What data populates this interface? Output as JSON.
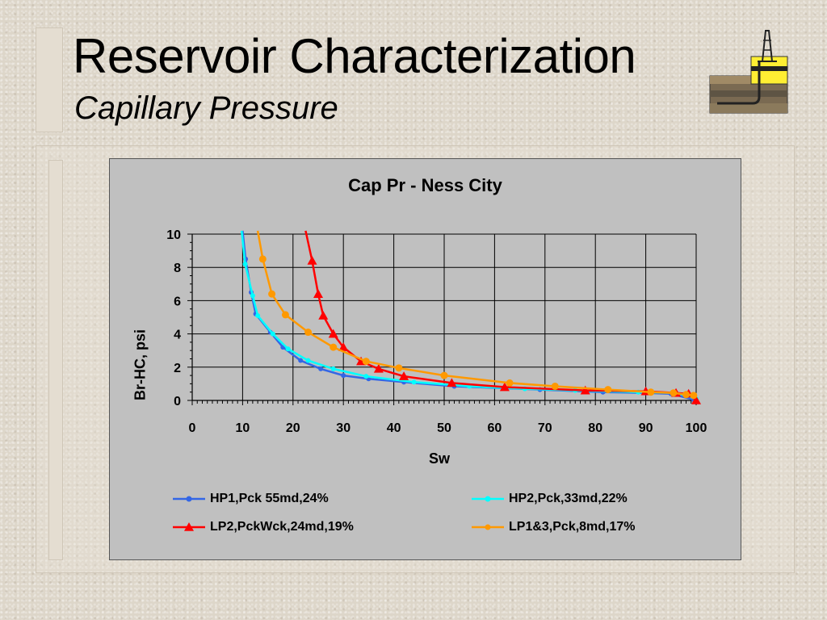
{
  "slide": {
    "title": "Reservoir Characterization",
    "subtitle": "Capillary Pressure",
    "logo_icon": "oil-derrick-logo-icon",
    "colors": {
      "background": "#ddd6c9",
      "plot_area": "#c0c0c0"
    }
  },
  "chart_data": {
    "type": "line",
    "title": "Cap Pr - Ness City",
    "xlabel": "Sw",
    "ylabel": "Br-HC, psi",
    "xlim": [
      0,
      100
    ],
    "ylim": [
      0,
      10
    ],
    "xticks": [
      0,
      10,
      20,
      30,
      40,
      50,
      60,
      70,
      80,
      90,
      100
    ],
    "yticks": [
      0,
      2,
      4,
      6,
      8,
      10
    ],
    "grid": true,
    "legend_position": "bottom",
    "series": [
      {
        "name": "HP1,Pck 55md,24%",
        "color": "#3366e6",
        "marker": "circle",
        "points": [
          [
            10,
            10.2
          ],
          [
            10.6,
            8.5
          ],
          [
            11.7,
            6.5
          ],
          [
            12.6,
            5.2
          ],
          [
            15.5,
            4.1
          ],
          [
            18,
            3.2
          ],
          [
            21.5,
            2.4
          ],
          [
            25.5,
            1.9
          ],
          [
            30,
            1.5
          ],
          [
            35,
            1.3
          ],
          [
            42,
            1.1
          ],
          [
            52,
            0.85
          ],
          [
            69,
            0.65
          ],
          [
            81.5,
            0.5
          ],
          [
            90,
            0.45
          ],
          [
            95,
            0.4
          ],
          [
            99.5,
            0.05
          ]
        ]
      },
      {
        "name": "HP2,Pck,33md,22%",
        "color": "#00ffff",
        "marker": "circle",
        "points": [
          [
            9.8,
            10.2
          ],
          [
            10.5,
            8.2
          ],
          [
            12,
            6.3
          ],
          [
            13,
            5.1
          ],
          [
            16,
            4.0
          ],
          [
            19,
            3.1
          ],
          [
            23,
            2.4
          ],
          [
            28,
            1.9
          ],
          [
            34.5,
            1.45
          ],
          [
            44,
            1.1
          ],
          [
            55,
            0.85
          ],
          [
            66,
            0.7
          ],
          [
            76,
            0.6
          ],
          [
            88.5,
            0.5
          ],
          [
            96,
            0.45
          ],
          [
            100,
            0.1
          ]
        ]
      },
      {
        "name": "LP2,PckWck,24md,19%",
        "color": "#ff0000",
        "marker": "triangle",
        "points": [
          [
            22.5,
            10.2
          ],
          [
            23.8,
            8.4
          ],
          [
            25,
            6.4
          ],
          [
            26,
            5.1
          ],
          [
            28,
            4.0
          ],
          [
            30,
            3.2
          ],
          [
            33.5,
            2.35
          ],
          [
            37,
            1.9
          ],
          [
            42,
            1.45
          ],
          [
            51.5,
            1.05
          ],
          [
            62,
            0.8
          ],
          [
            78,
            0.6
          ],
          [
            90,
            0.55
          ],
          [
            96,
            0.45
          ],
          [
            98.5,
            0.4
          ],
          [
            100,
            0
          ]
        ]
      },
      {
        "name": "LP1&3,Pck,8md,17%",
        "color": "#ff9900",
        "marker": "circle",
        "points": [
          [
            13,
            10.2
          ],
          [
            14,
            8.5
          ],
          [
            15.8,
            6.4
          ],
          [
            18.5,
            5.15
          ],
          [
            23,
            4.1
          ],
          [
            28,
            3.2
          ],
          [
            34.5,
            2.35
          ],
          [
            41,
            1.95
          ],
          [
            50,
            1.5
          ],
          [
            63,
            1.05
          ],
          [
            72,
            0.85
          ],
          [
            82.5,
            0.65
          ],
          [
            91,
            0.5
          ],
          [
            95.5,
            0.45
          ],
          [
            98,
            0.35
          ],
          [
            99.5,
            0.3
          ]
        ]
      }
    ]
  }
}
